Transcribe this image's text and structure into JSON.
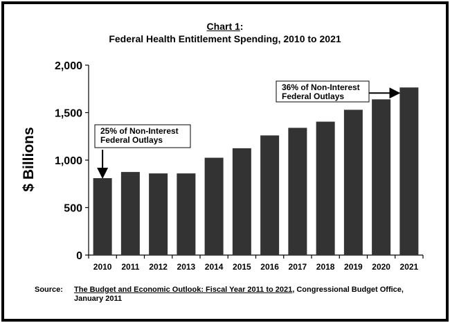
{
  "title": {
    "prefix": "Chart 1",
    "colon": ":",
    "main": "Federal Health Entitlement Spending, 2010 to 2021"
  },
  "source": {
    "label": "Source:",
    "book": "The Budget and Economic Outlook:  Fiscal Year 2011 to 2021",
    "rest_line1": ", Congressional Budget Office,",
    "line2": "January 2011"
  },
  "chart_data": {
    "type": "bar",
    "title": "Chart 1: Federal Health Entitlement Spending, 2010 to 2021",
    "xlabel": "",
    "ylabel": "$ Billions",
    "ylim": [
      0,
      2000
    ],
    "yticks": [
      0,
      500,
      1000,
      1500,
      2000
    ],
    "ytick_labels": [
      "0",
      "500",
      "1,000",
      "1,500",
      "2,000"
    ],
    "grid": false,
    "categories": [
      "2010",
      "2011",
      "2012",
      "2013",
      "2014",
      "2015",
      "2016",
      "2017",
      "2018",
      "2019",
      "2020",
      "2021"
    ],
    "values": [
      810,
      875,
      860,
      860,
      1025,
      1125,
      1260,
      1340,
      1405,
      1530,
      1640,
      1765
    ],
    "bar_color": "#333333",
    "annotations": [
      {
        "category": "2010",
        "lines": [
          "25% of Non-Interest",
          "Federal Outlays"
        ]
      },
      {
        "category": "2021",
        "lines": [
          "36% of Non-Interest",
          "Federal Outlays"
        ]
      }
    ]
  }
}
